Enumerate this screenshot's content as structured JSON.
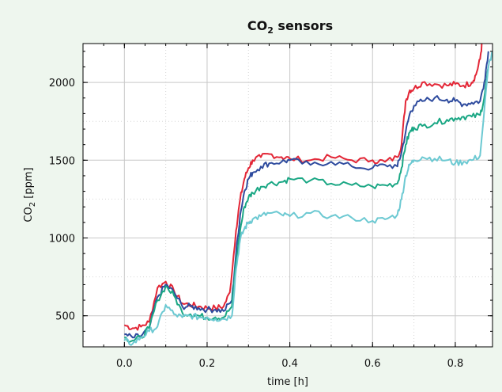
{
  "chart_data": {
    "type": "line",
    "title": "CO",
    "title_subscript": "2",
    "title_suffix": " sensors",
    "xlabel": "time [h]",
    "ylabel": "CO",
    "ylabel_subscript": "2",
    "ylabel_suffix": " [ppm]",
    "xlim": [
      -0.1,
      0.89
    ],
    "ylim": [
      300,
      2250
    ],
    "xticks": [
      0.0,
      0.2,
      0.4,
      0.6,
      0.8
    ],
    "xtick_labels": [
      "0.0",
      "0.2",
      "0.4",
      "0.6",
      "0.8"
    ],
    "yticks": [
      500,
      1000,
      1500,
      2000
    ],
    "ytick_labels": [
      "500",
      "1000",
      "1500",
      "2000"
    ],
    "grid": true,
    "legend": "none",
    "series": [
      {
        "color": "#e32636",
        "x": [
          0.0,
          0.02,
          0.04,
          0.06,
          0.08,
          0.1,
          0.12,
          0.14,
          0.16,
          0.18,
          0.2,
          0.22,
          0.24,
          0.255,
          0.27,
          0.28,
          0.29,
          0.3,
          0.31,
          0.33,
          0.35,
          0.38,
          0.4,
          0.45,
          0.5,
          0.55,
          0.6,
          0.63,
          0.66,
          0.67,
          0.68,
          0.69,
          0.7,
          0.72,
          0.75,
          0.78,
          0.8,
          0.82,
          0.84,
          0.85,
          0.86,
          0.865
        ],
        "y": [
          440,
          420,
          430,
          460,
          680,
          720,
          660,
          580,
          570,
          560,
          550,
          550,
          560,
          650,
          1050,
          1250,
          1380,
          1450,
          1500,
          1520,
          1540,
          1520,
          1510,
          1500,
          1520,
          1500,
          1500,
          1490,
          1520,
          1600,
          1880,
          1950,
          1960,
          2000,
          1990,
          1980,
          1990,
          1980,
          2000,
          2050,
          2150,
          2260
        ]
      },
      {
        "color": "#2e4b9e",
        "x": [
          0.0,
          0.02,
          0.04,
          0.06,
          0.08,
          0.1,
          0.12,
          0.14,
          0.16,
          0.18,
          0.2,
          0.22,
          0.24,
          0.26,
          0.27,
          0.28,
          0.29,
          0.3,
          0.31,
          0.33,
          0.35,
          0.38,
          0.4,
          0.45,
          0.5,
          0.55,
          0.6,
          0.63,
          0.66,
          0.67,
          0.68,
          0.69,
          0.7,
          0.72,
          0.75,
          0.78,
          0.8,
          0.82,
          0.84,
          0.86,
          0.87,
          0.88
        ],
        "y": [
          380,
          360,
          370,
          420,
          620,
          700,
          650,
          560,
          560,
          550,
          540,
          540,
          530,
          600,
          900,
          1150,
          1300,
          1380,
          1420,
          1460,
          1480,
          1490,
          1500,
          1470,
          1490,
          1460,
          1450,
          1470,
          1460,
          1550,
          1680,
          1800,
          1850,
          1880,
          1900,
          1890,
          1880,
          1860,
          1870,
          1880,
          2000,
          2200
        ]
      },
      {
        "color": "#1aa784",
        "x": [
          0.0,
          0.02,
          0.04,
          0.06,
          0.08,
          0.1,
          0.12,
          0.14,
          0.16,
          0.18,
          0.2,
          0.22,
          0.24,
          0.26,
          0.27,
          0.28,
          0.29,
          0.3,
          0.31,
          0.33,
          0.35,
          0.38,
          0.4,
          0.45,
          0.5,
          0.55,
          0.6,
          0.63,
          0.66,
          0.67,
          0.68,
          0.69,
          0.7,
          0.72,
          0.75,
          0.78,
          0.8,
          0.82,
          0.84,
          0.86,
          0.87,
          0.88
        ],
        "y": [
          360,
          340,
          360,
          420,
          600,
          690,
          630,
          520,
          510,
          500,
          490,
          490,
          490,
          560,
          850,
          1050,
          1200,
          1260,
          1290,
          1330,
          1350,
          1360,
          1380,
          1370,
          1350,
          1340,
          1330,
          1340,
          1350,
          1450,
          1600,
          1680,
          1710,
          1720,
          1740,
          1760,
          1770,
          1780,
          1780,
          1790,
          1900,
          2100
        ]
      },
      {
        "color": "#6cc9d2",
        "x": [
          0.0,
          0.02,
          0.04,
          0.06,
          0.08,
          0.1,
          0.12,
          0.14,
          0.16,
          0.18,
          0.2,
          0.22,
          0.24,
          0.26,
          0.27,
          0.28,
          0.29,
          0.3,
          0.31,
          0.33,
          0.35,
          0.38,
          0.4,
          0.45,
          0.5,
          0.55,
          0.6,
          0.63,
          0.66,
          0.67,
          0.68,
          0.69,
          0.7,
          0.72,
          0.75,
          0.78,
          0.8,
          0.82,
          0.84,
          0.86,
          0.88,
          0.89
        ],
        "y": [
          340,
          320,
          360,
          400,
          430,
          570,
          510,
          490,
          500,
          490,
          490,
          480,
          480,
          500,
          800,
          990,
          1060,
          1100,
          1120,
          1140,
          1160,
          1150,
          1140,
          1160,
          1140,
          1130,
          1110,
          1120,
          1150,
          1250,
          1400,
          1470,
          1500,
          1520,
          1510,
          1500,
          1480,
          1490,
          1500,
          1530,
          2100,
          2200
        ]
      }
    ]
  }
}
